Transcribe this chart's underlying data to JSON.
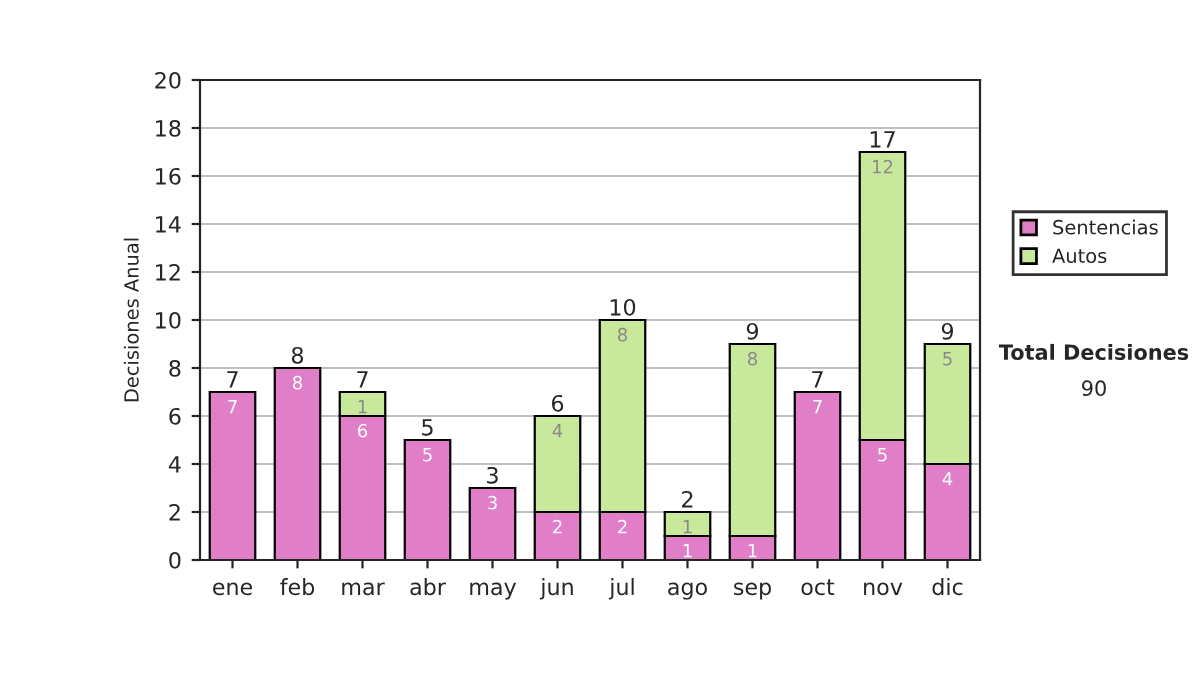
{
  "chart_data": {
    "type": "bar",
    "stacked": true,
    "ylabel": "Decisiones Anual",
    "categories": [
      "ene",
      "feb",
      "mar",
      "abr",
      "may",
      "jun",
      "jul",
      "ago",
      "sep",
      "oct",
      "nov",
      "dic"
    ],
    "series": [
      {
        "name": "Sentencias",
        "color": "#e07fc8",
        "values": [
          7,
          8,
          6,
          5,
          3,
          2,
          2,
          1,
          1,
          7,
          5,
          4
        ],
        "value_labels": [
          "7",
          "8",
          "6",
          "5",
          "3",
          "2",
          "2",
          "1",
          "1",
          "7",
          "5",
          "4"
        ]
      },
      {
        "name": "Autos",
        "color": "#c8e89c",
        "values": [
          0,
          0,
          1,
          0,
          0,
          4,
          8,
          1,
          8,
          0,
          12,
          5
        ],
        "value_labels": [
          null,
          null,
          "1",
          null,
          null,
          "4",
          "8",
          "1",
          "8",
          null,
          "12",
          "5"
        ]
      }
    ],
    "totals": [
      "7",
      "8",
      "7",
      "5",
      "3",
      "6",
      "10",
      "2",
      "9",
      "7",
      "17",
      "9"
    ],
    "ylim": [
      0,
      20
    ],
    "yticks": [
      0,
      2,
      4,
      6,
      8,
      10,
      12,
      14,
      16,
      18,
      20
    ],
    "grid": "y",
    "legend": "right",
    "annotations": [
      "Total Decisiones",
      "90"
    ]
  }
}
